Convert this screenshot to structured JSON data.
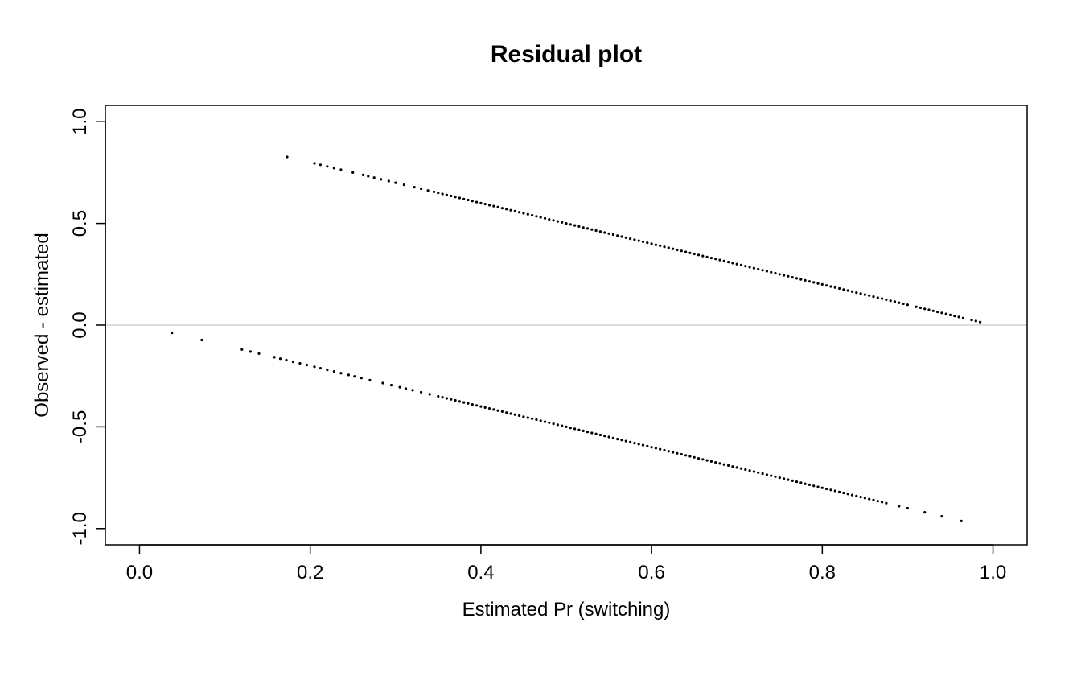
{
  "chart_data": {
    "type": "scatter",
    "title": "Residual plot",
    "xlabel": "Estimated  Pr (switching)",
    "ylabel": "Observed - estimated",
    "xlim": [
      -0.04,
      1.04
    ],
    "ylim": [
      -1.08,
      1.08
    ],
    "xticks": [
      "0.0",
      "0.2",
      "0.4",
      "0.6",
      "0.8",
      "1.0"
    ],
    "yticks": [
      "-1.0",
      "-0.5",
      "0.0",
      "0.5",
      "1.0"
    ],
    "reference_line": {
      "y": 0,
      "color": "#d3d3d3"
    },
    "point_color": "#000000",
    "grid": false,
    "series": [
      {
        "x": [
          0.173,
          0.205,
          0.212,
          0.22,
          0.228,
          0.236,
          0.25,
          0.262,
          0.268,
          0.275,
          0.283,
          0.292,
          0.3,
          0.31,
          0.322,
          0.33,
          0.338,
          0.345,
          0.35,
          0.355,
          0.36,
          0.365,
          0.37,
          0.375,
          0.38,
          0.385,
          0.39,
          0.395,
          0.4,
          0.405,
          0.41,
          0.415,
          0.42,
          0.425,
          0.43,
          0.435,
          0.44,
          0.445,
          0.45,
          0.455,
          0.46,
          0.465,
          0.47,
          0.475,
          0.48,
          0.485,
          0.49,
          0.495,
          0.5,
          0.505,
          0.51,
          0.515,
          0.52,
          0.525,
          0.53,
          0.535,
          0.54,
          0.545,
          0.55,
          0.555,
          0.56,
          0.565,
          0.57,
          0.575,
          0.58,
          0.585,
          0.59,
          0.595,
          0.6,
          0.605,
          0.61,
          0.615,
          0.62,
          0.625,
          0.63,
          0.635,
          0.64,
          0.645,
          0.65,
          0.655,
          0.66,
          0.665,
          0.67,
          0.675,
          0.68,
          0.685,
          0.69,
          0.695,
          0.7,
          0.705,
          0.71,
          0.715,
          0.72,
          0.725,
          0.73,
          0.735,
          0.74,
          0.745,
          0.75,
          0.755,
          0.76,
          0.765,
          0.77,
          0.775,
          0.78,
          0.785,
          0.79,
          0.795,
          0.8,
          0.805,
          0.81,
          0.815,
          0.82,
          0.825,
          0.83,
          0.835,
          0.84,
          0.845,
          0.85,
          0.855,
          0.86,
          0.865,
          0.87,
          0.875,
          0.88,
          0.885,
          0.89,
          0.895,
          0.9,
          0.91,
          0.915,
          0.92,
          0.925,
          0.93,
          0.935,
          0.94,
          0.945,
          0.95,
          0.955,
          0.96,
          0.965,
          0.975,
          0.98,
          0.985
        ],
        "y": [
          0.827,
          0.795,
          0.788,
          0.78,
          0.772,
          0.764,
          0.75,
          0.738,
          0.732,
          0.725,
          0.717,
          0.708,
          0.7,
          0.69,
          0.678,
          0.67,
          0.662,
          0.655,
          0.65,
          0.645,
          0.64,
          0.635,
          0.63,
          0.625,
          0.62,
          0.615,
          0.61,
          0.605,
          0.6,
          0.595,
          0.59,
          0.585,
          0.58,
          0.575,
          0.57,
          0.565,
          0.56,
          0.555,
          0.55,
          0.545,
          0.54,
          0.535,
          0.53,
          0.525,
          0.52,
          0.515,
          0.51,
          0.505,
          0.5,
          0.495,
          0.49,
          0.485,
          0.48,
          0.475,
          0.47,
          0.465,
          0.46,
          0.455,
          0.45,
          0.445,
          0.44,
          0.435,
          0.43,
          0.425,
          0.42,
          0.415,
          0.41,
          0.405,
          0.4,
          0.395,
          0.39,
          0.385,
          0.38,
          0.375,
          0.37,
          0.365,
          0.36,
          0.355,
          0.35,
          0.345,
          0.34,
          0.335,
          0.33,
          0.325,
          0.32,
          0.315,
          0.31,
          0.305,
          0.3,
          0.295,
          0.29,
          0.285,
          0.28,
          0.275,
          0.27,
          0.265,
          0.26,
          0.255,
          0.25,
          0.245,
          0.24,
          0.235,
          0.23,
          0.225,
          0.22,
          0.215,
          0.21,
          0.205,
          0.2,
          0.195,
          0.19,
          0.185,
          0.18,
          0.175,
          0.17,
          0.165,
          0.16,
          0.155,
          0.15,
          0.145,
          0.14,
          0.135,
          0.13,
          0.125,
          0.12,
          0.115,
          0.11,
          0.105,
          0.1,
          0.09,
          0.085,
          0.08,
          0.075,
          0.07,
          0.065,
          0.06,
          0.055,
          0.05,
          0.045,
          0.04,
          0.035,
          0.025,
          0.02,
          0.015
        ]
      },
      {
        "x": [
          0.038,
          0.073,
          0.12,
          0.13,
          0.14,
          0.158,
          0.165,
          0.172,
          0.18,
          0.188,
          0.196,
          0.205,
          0.212,
          0.22,
          0.228,
          0.236,
          0.245,
          0.252,
          0.26,
          0.27,
          0.285,
          0.295,
          0.305,
          0.312,
          0.32,
          0.33,
          0.34,
          0.35,
          0.355,
          0.36,
          0.365,
          0.37,
          0.375,
          0.38,
          0.385,
          0.39,
          0.395,
          0.4,
          0.405,
          0.41,
          0.415,
          0.42,
          0.425,
          0.43,
          0.435,
          0.44,
          0.445,
          0.45,
          0.455,
          0.46,
          0.465,
          0.47,
          0.475,
          0.48,
          0.485,
          0.49,
          0.495,
          0.5,
          0.505,
          0.51,
          0.515,
          0.52,
          0.525,
          0.53,
          0.535,
          0.54,
          0.545,
          0.55,
          0.555,
          0.56,
          0.565,
          0.57,
          0.575,
          0.58,
          0.585,
          0.59,
          0.595,
          0.6,
          0.605,
          0.61,
          0.615,
          0.62,
          0.625,
          0.63,
          0.635,
          0.64,
          0.645,
          0.65,
          0.655,
          0.66,
          0.665,
          0.67,
          0.675,
          0.68,
          0.685,
          0.69,
          0.695,
          0.7,
          0.705,
          0.71,
          0.715,
          0.72,
          0.725,
          0.73,
          0.735,
          0.74,
          0.745,
          0.75,
          0.755,
          0.76,
          0.765,
          0.77,
          0.775,
          0.78,
          0.785,
          0.79,
          0.795,
          0.8,
          0.805,
          0.81,
          0.815,
          0.82,
          0.825,
          0.83,
          0.835,
          0.84,
          0.845,
          0.85,
          0.855,
          0.86,
          0.865,
          0.87,
          0.875,
          0.89,
          0.9,
          0.92,
          0.94,
          0.963
        ],
        "y": [
          -0.038,
          -0.073,
          -0.12,
          -0.13,
          -0.14,
          -0.158,
          -0.165,
          -0.172,
          -0.18,
          -0.188,
          -0.196,
          -0.205,
          -0.212,
          -0.22,
          -0.228,
          -0.236,
          -0.245,
          -0.252,
          -0.26,
          -0.27,
          -0.285,
          -0.295,
          -0.305,
          -0.312,
          -0.32,
          -0.33,
          -0.34,
          -0.35,
          -0.355,
          -0.36,
          -0.365,
          -0.37,
          -0.375,
          -0.38,
          -0.385,
          -0.39,
          -0.395,
          -0.4,
          -0.405,
          -0.41,
          -0.415,
          -0.42,
          -0.425,
          -0.43,
          -0.435,
          -0.44,
          -0.445,
          -0.45,
          -0.455,
          -0.46,
          -0.465,
          -0.47,
          -0.475,
          -0.48,
          -0.485,
          -0.49,
          -0.495,
          -0.5,
          -0.505,
          -0.51,
          -0.515,
          -0.52,
          -0.525,
          -0.53,
          -0.535,
          -0.54,
          -0.545,
          -0.55,
          -0.555,
          -0.56,
          -0.565,
          -0.57,
          -0.575,
          -0.58,
          -0.585,
          -0.59,
          -0.595,
          -0.6,
          -0.605,
          -0.61,
          -0.615,
          -0.62,
          -0.625,
          -0.63,
          -0.635,
          -0.64,
          -0.645,
          -0.65,
          -0.655,
          -0.66,
          -0.665,
          -0.67,
          -0.675,
          -0.68,
          -0.685,
          -0.69,
          -0.695,
          -0.7,
          -0.705,
          -0.71,
          -0.715,
          -0.72,
          -0.725,
          -0.73,
          -0.735,
          -0.74,
          -0.745,
          -0.75,
          -0.755,
          -0.76,
          -0.765,
          -0.77,
          -0.775,
          -0.78,
          -0.785,
          -0.79,
          -0.795,
          -0.8,
          -0.805,
          -0.81,
          -0.815,
          -0.82,
          -0.825,
          -0.83,
          -0.835,
          -0.84,
          -0.845,
          -0.85,
          -0.855,
          -0.86,
          -0.865,
          -0.87,
          -0.875,
          -0.89,
          -0.9,
          -0.92,
          -0.94,
          -0.963
        ]
      }
    ]
  }
}
